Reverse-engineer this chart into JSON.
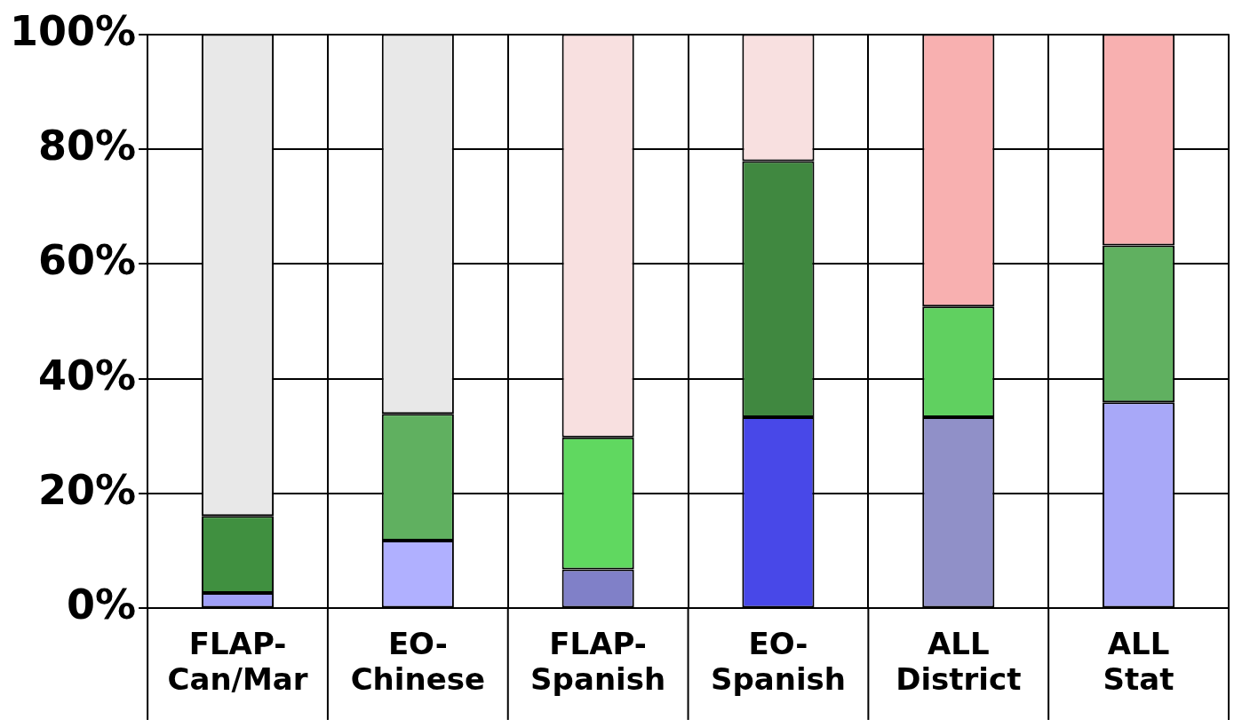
{
  "chart_data": {
    "type": "bar",
    "stacked": true,
    "categories": [
      "FLAP- Can/Mar",
      "EO- Chinese",
      "FLAP- Spanish",
      "EO- Spanish",
      "ALL District",
      "ALL Stat"
    ],
    "series": [
      {
        "colors": [
          "#a0a0f8",
          "#b0b0ff",
          "#8080c8",
          "#4848e8",
          "#9090c8",
          "#a8a8f8"
        ],
        "values": [
          2.7,
          11.8,
          6.8,
          33.3,
          33.3,
          35.9
        ]
      },
      {
        "colors": [
          "#409040",
          "#60b060",
          "#60d860",
          "#408840",
          "#60d060",
          "#60b060"
        ],
        "values": [
          13.4,
          22.1,
          23,
          44.6,
          19.3,
          27.3
        ]
      },
      {
        "colors": [
          "#e8e8e8",
          "#e8e8e8",
          "#f8e0e0",
          "#f8e0e0",
          "#f8b0b0",
          "#f8b0b0"
        ],
        "values": [
          83.9,
          66.1,
          70.2,
          22.1,
          47.4,
          36.8
        ]
      }
    ],
    "ylim": [
      0,
      100
    ],
    "yticks": [
      {
        "value": 0,
        "label": "0%"
      },
      {
        "value": 20,
        "label": "20%"
      },
      {
        "value": 40,
        "label": "40%"
      },
      {
        "value": 60,
        "label": "60%"
      },
      {
        "value": 80,
        "label": "80%"
      },
      {
        "value": 100,
        "label": "100%"
      }
    ],
    "grid": true,
    "legend": false
  }
}
